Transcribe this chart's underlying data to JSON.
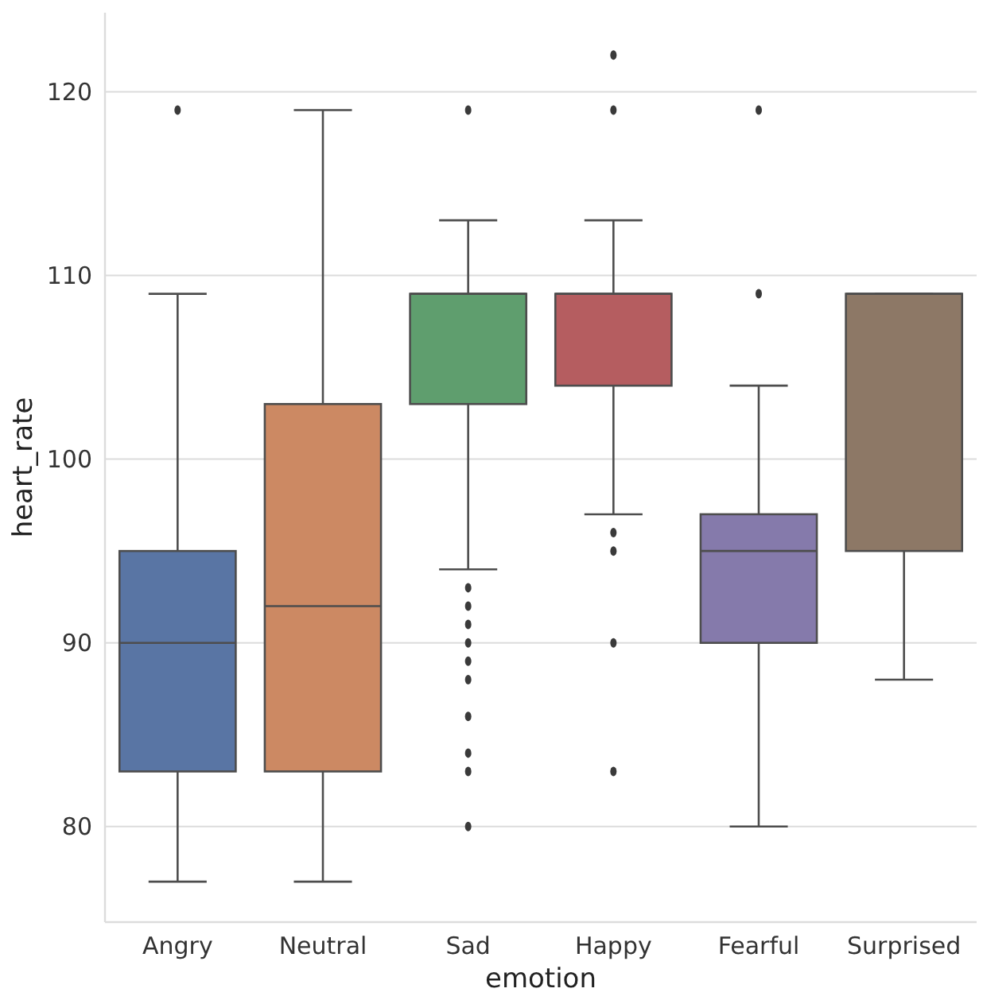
{
  "chart_data": {
    "type": "box",
    "xlabel": "emotion",
    "ylabel": "heart_rate",
    "categories": [
      "Angry",
      "Neutral",
      "Sad",
      "Happy",
      "Fearful",
      "Surprised"
    ],
    "colors": [
      "#5975a4",
      "#cc8963",
      "#5f9e6e",
      "#b55d60",
      "#857aab",
      "#8d7866"
    ],
    "boxes": [
      {
        "low": 77,
        "q1": 83,
        "median": 90,
        "q3": 95,
        "high": 109,
        "outliers": [
          119
        ]
      },
      {
        "low": 77,
        "q1": 83,
        "median": 92,
        "q3": 103,
        "high": 119
      },
      {
        "low": 94,
        "q1": 103,
        "median": 109,
        "q3": 109,
        "high": 113,
        "outliers": [
          119,
          93,
          92,
          91,
          90,
          89,
          88,
          86,
          84,
          83,
          80
        ]
      },
      {
        "low": 97,
        "q1": 104,
        "median": 109,
        "q3": 109,
        "high": 113,
        "outliers": [
          122,
          119,
          96,
          95,
          90,
          83
        ]
      },
      {
        "low": 80,
        "q1": 90,
        "median": 95,
        "q3": 97,
        "high": 104,
        "outliers": [
          119,
          109
        ]
      },
      {
        "low": 88,
        "q1": 95,
        "median": 109,
        "q3": 109,
        "high": 109
      }
    ],
    "ylim": [
      74.8,
      124.3
    ],
    "yticks": [
      80,
      90,
      100,
      110,
      120
    ],
    "grid": "y"
  }
}
